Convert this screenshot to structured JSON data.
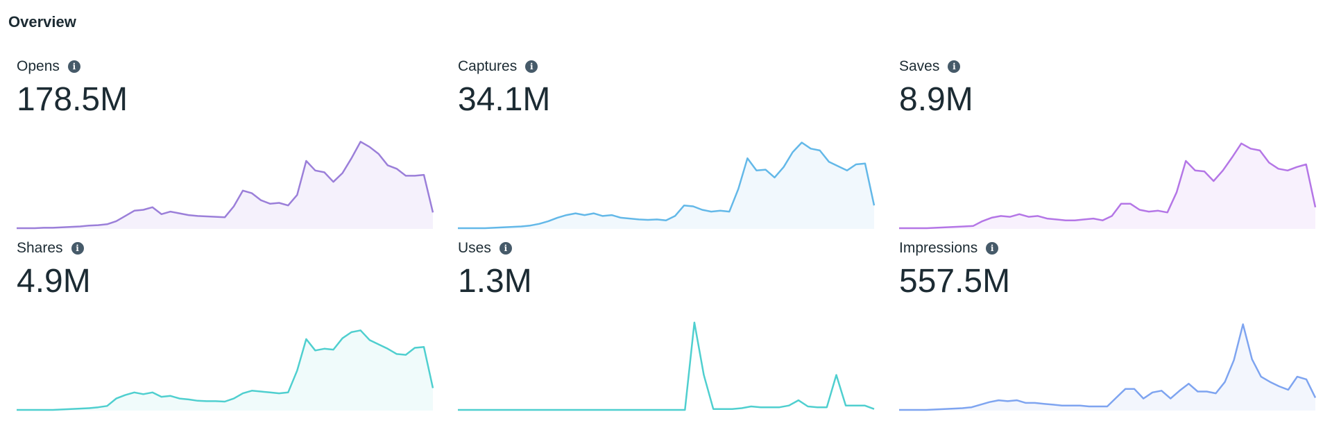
{
  "page": {
    "title": "Overview"
  },
  "metrics": [
    {
      "label": "Opens",
      "value": "178.5M",
      "color": "#9b7fd9",
      "fill": "#f5f1fc",
      "icon": "info-icon"
    },
    {
      "label": "Captures",
      "value": "34.1M",
      "color": "#63b8e8",
      "fill": "#f1f8fd",
      "icon": "info-icon"
    },
    {
      "label": "Saves",
      "value": "8.9M",
      "color": "#b476e6",
      "fill": "#f8f1fd",
      "icon": "info-icon"
    },
    {
      "label": "Shares",
      "value": "4.9M",
      "color": "#4fcfcf",
      "fill": "#f0fbfb",
      "icon": "info-icon"
    },
    {
      "label": "Uses",
      "value": "1.3M",
      "color": "#4fcfcf",
      "fill": "#ffffff",
      "icon": "info-icon"
    },
    {
      "label": "Impressions",
      "value": "557.5M",
      "color": "#7ea4f0",
      "fill": "#f3f6fd",
      "icon": "info-icon"
    }
  ],
  "chart_data": [
    {
      "type": "area",
      "name": "Opens",
      "title": "",
      "ylim": [
        0,
        100
      ],
      "values": [
        0,
        0,
        0,
        0.5,
        0.5,
        1,
        1.5,
        2,
        3,
        3.5,
        4.5,
        8,
        14,
        20,
        21,
        24,
        16,
        19,
        17,
        15,
        14,
        13.5,
        13,
        12.5,
        25,
        43,
        40,
        32,
        28,
        29,
        26,
        38,
        77,
        66,
        64,
        53,
        63,
        80,
        99,
        93,
        85,
        72,
        68,
        60,
        60,
        61,
        18
      ]
    },
    {
      "type": "area",
      "name": "Captures",
      "title": "",
      "ylim": [
        0,
        100
      ],
      "values": [
        0,
        0,
        0,
        0,
        0.5,
        1,
        1.5,
        2,
        3,
        5,
        8,
        12,
        15,
        17,
        15,
        17,
        14,
        15,
        12,
        11,
        10,
        9.5,
        10,
        9,
        14,
        26,
        25,
        21,
        19,
        20,
        19,
        45,
        80,
        66,
        67,
        58,
        70,
        87,
        98,
        91,
        89,
        76,
        71,
        66,
        73,
        74,
        26
      ]
    },
    {
      "type": "area",
      "name": "Saves",
      "title": "",
      "ylim": [
        0,
        100
      ],
      "values": [
        0,
        0,
        0,
        0,
        0.5,
        1,
        1.5,
        2,
        2.5,
        8,
        12,
        14,
        13,
        16,
        13,
        14,
        11,
        10,
        9,
        9,
        10,
        11,
        9,
        14,
        28,
        28,
        21,
        19,
        20,
        18,
        41,
        77,
        66,
        65,
        54,
        66,
        81,
        97,
        91,
        89,
        75,
        68,
        66,
        70,
        73,
        24
      ]
    },
    {
      "type": "area",
      "name": "Shares",
      "title": "",
      "ylim": [
        0,
        100
      ],
      "values": [
        0,
        0,
        0,
        0,
        0,
        0.5,
        1,
        1.5,
        2,
        3,
        4.5,
        13,
        17,
        20,
        18,
        20,
        15,
        16,
        13,
        12,
        10.5,
        10,
        10,
        9.5,
        13,
        19,
        22,
        21,
        20,
        19,
        20,
        45,
        81,
        68,
        70,
        69,
        82,
        89,
        91,
        80,
        75,
        70,
        64,
        63,
        71,
        72,
        25
      ]
    },
    {
      "type": "line",
      "name": "Uses",
      "title": "",
      "ylim": [
        0,
        100
      ],
      "values": [
        0,
        0,
        0,
        0,
        0,
        0,
        0,
        0,
        0,
        0,
        0,
        0,
        0,
        0,
        0,
        0,
        0,
        0,
        0,
        0,
        0,
        0,
        0,
        0,
        0,
        100,
        40,
        1,
        1,
        1,
        2,
        4,
        3,
        3,
        3,
        5,
        11,
        4,
        3,
        3,
        40,
        5,
        5,
        5,
        1
      ]
    },
    {
      "type": "area",
      "name": "Impressions",
      "title": "",
      "ylim": [
        0,
        100
      ],
      "values": [
        0,
        0,
        0,
        0,
        0.5,
        1,
        1.5,
        2,
        3,
        6,
        9,
        11,
        10,
        11,
        8,
        8,
        7,
        6,
        5,
        5,
        5,
        4,
        4,
        4,
        14,
        24,
        24,
        13,
        20,
        22,
        13,
        22,
        30,
        21,
        21,
        19,
        32,
        57,
        98,
        58,
        38,
        32,
        27,
        23,
        38,
        35,
        14
      ]
    }
  ]
}
